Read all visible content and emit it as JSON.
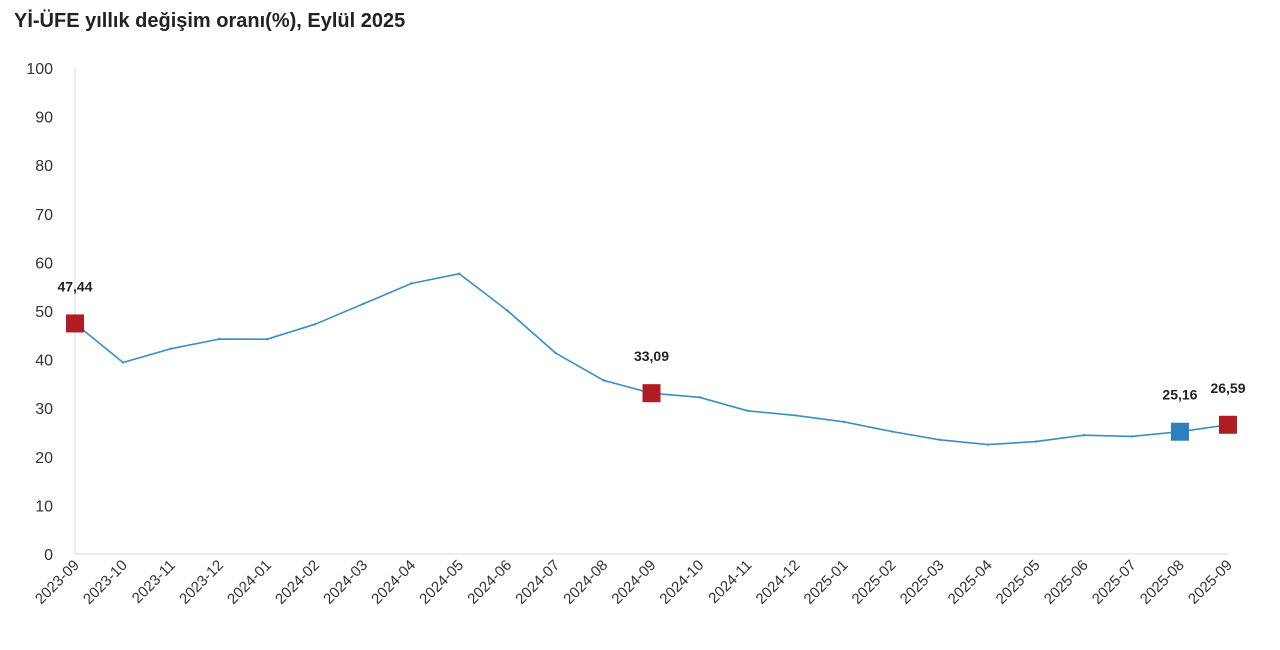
{
  "chart_data": {
    "type": "line",
    "title": "Yİ-ÜFE yıllık değişim oranı(%), Eylül 2025",
    "xlabel": "",
    "ylabel": "",
    "ylim": [
      0,
      100
    ],
    "yticks": [
      0,
      10,
      20,
      30,
      40,
      50,
      60,
      70,
      80,
      90,
      100
    ],
    "grid": false,
    "categories": [
      "2023-09",
      "2023-10",
      "2023-11",
      "2023-12",
      "2024-01",
      "2024-02",
      "2024-03",
      "2024-04",
      "2024-05",
      "2024-06",
      "2024-07",
      "2024-08",
      "2024-09",
      "2024-10",
      "2024-11",
      "2024-12",
      "2025-01",
      "2025-02",
      "2025-03",
      "2025-04",
      "2025-05",
      "2025-06",
      "2025-07",
      "2025-08",
      "2025-09"
    ],
    "series": [
      {
        "values": [
          47.44,
          39.4,
          42.25,
          44.22,
          44.2,
          47.29,
          51.47,
          55.66,
          57.68,
          50.09,
          41.37,
          35.75,
          33.09,
          32.24,
          29.47,
          28.52,
          27.2,
          25.21,
          23.5,
          22.5,
          23.13,
          24.45,
          24.19,
          25.16,
          26.59
        ],
        "color": "#3a8fc4"
      }
    ],
    "highlights": [
      {
        "index": 0,
        "label": "47,44",
        "color": "#b01c24"
      },
      {
        "index": 12,
        "label": "33,09",
        "color": "#b01c24"
      },
      {
        "index": 23,
        "label": "25,16",
        "color": "#2f7fc0"
      },
      {
        "index": 24,
        "label": "26,59",
        "color": "#b01c24"
      }
    ]
  }
}
